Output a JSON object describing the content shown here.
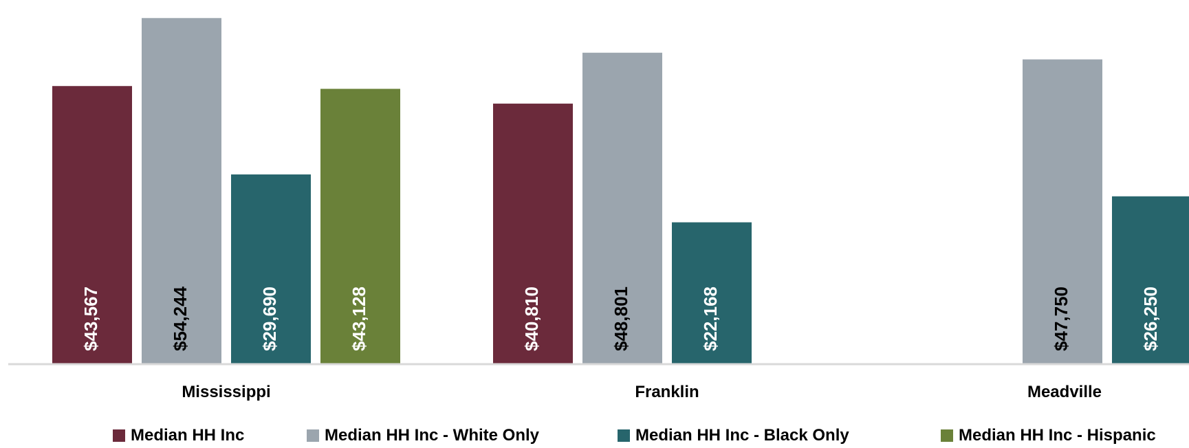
{
  "chart_data": {
    "type": "bar",
    "categories": [
      "Mississippi",
      "Franklin",
      "Meadville"
    ],
    "series": [
      {
        "name": "Median HH Inc",
        "color": "#6b2a3b",
        "label_color": "#ffffff",
        "values": [
          43567,
          40810,
          null
        ],
        "labels": [
          "$43,567",
          "$40,810",
          ""
        ]
      },
      {
        "name": "Median HH Inc - White Only",
        "color": "#9ba5ae",
        "label_color": "#000000",
        "values": [
          54244,
          48801,
          47750
        ],
        "labels": [
          "$54,244",
          "$48,801",
          "$47,750"
        ]
      },
      {
        "name": "Median HH Inc - Black Only",
        "color": "#27656c",
        "label_color": "#ffffff",
        "values": [
          29690,
          22168,
          26250
        ],
        "labels": [
          "$29,690",
          "$22,168",
          "$26,250"
        ]
      },
      {
        "name": "Median HH Inc - Hispanic",
        "color": "#6a8139",
        "label_color": "#ffffff",
        "values": [
          43128,
          null,
          null
        ],
        "labels": [
          "$43,128",
          "",
          ""
        ]
      }
    ],
    "ylim": [
      0,
      56000
    ],
    "grid": false,
    "legend_position": "bottom"
  }
}
